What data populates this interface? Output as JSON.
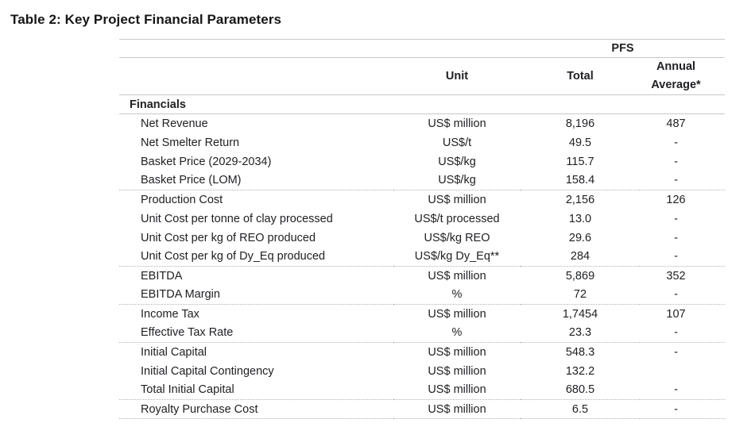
{
  "title": "Table 2: Key Project Financial Parameters",
  "table": {
    "group_header": "PFS",
    "columns": {
      "unit": "Unit",
      "total": "Total",
      "annual": "Annual Average*"
    },
    "section": "Financials",
    "groups": [
      {
        "rows": [
          {
            "label": "Net Revenue",
            "unit": "US$ million",
            "total": "8,196",
            "annual": "487"
          },
          {
            "label": "Net Smelter Return",
            "unit": "US$/t",
            "total": "49.5",
            "annual": "-"
          },
          {
            "label": "Basket Price (2029-2034)",
            "unit": "US$/kg",
            "total": "115.7",
            "annual": "-"
          },
          {
            "label": "Basket Price (LOM)",
            "unit": "US$/kg",
            "total": "158.4",
            "annual": "-"
          }
        ]
      },
      {
        "rows": [
          {
            "label": "Production Cost",
            "unit": "US$ million",
            "total": "2,156",
            "annual": "126"
          },
          {
            "label": "Unit Cost per tonne of clay processed",
            "unit": "US$/t processed",
            "total": "13.0",
            "annual": "-"
          },
          {
            "label": "Unit Cost per kg of REO produced",
            "unit": "US$/kg REO",
            "total": "29.6",
            "annual": "-"
          },
          {
            "label": "Unit Cost per kg of Dy_Eq produced",
            "unit": "US$/kg Dy_Eq**",
            "total": "284",
            "annual": "-"
          }
        ]
      },
      {
        "rows": [
          {
            "label": "EBITDA",
            "unit": "US$ million",
            "total": "5,869",
            "annual": "352"
          },
          {
            "label": "EBITDA Margin",
            "unit": "%",
            "total": "72",
            "annual": "-"
          }
        ]
      },
      {
        "rows": [
          {
            "label": "Income Tax",
            "unit": "US$ million",
            "total": "1,7454",
            "annual": "107"
          },
          {
            "label": "Effective Tax Rate",
            "unit": "%",
            "total": "23.3",
            "annual": "-"
          }
        ]
      },
      {
        "rows": [
          {
            "label": "Initial Capital",
            "unit": "US$ million",
            "total": "548.3",
            "annual": "-"
          },
          {
            "label": "Initial Capital Contingency",
            "unit": "US$ million",
            "total": "132.2",
            "annual": ""
          },
          {
            "label": "Total Initial Capital",
            "unit": "US$ million",
            "total": "680.5",
            "annual": "-"
          }
        ]
      },
      {
        "rows": [
          {
            "label": "Royalty Purchase Cost",
            "unit": "US$ million",
            "total": "6.5",
            "annual": "-"
          }
        ]
      }
    ]
  },
  "colors": {
    "rule_solid": "#c8c8c8",
    "rule_dotted": "#b3b3b3",
    "text": "#202124",
    "background": "#ffffff"
  }
}
